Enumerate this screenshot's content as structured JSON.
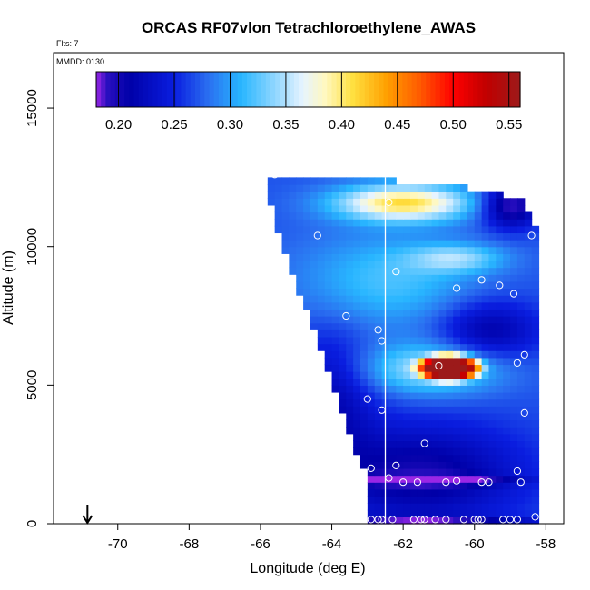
{
  "chart_data": {
    "type": "heatmap",
    "title": "ORCAS RF07vlon Tetrachloroethylene_AWAS",
    "flts_label": "Flts: 7",
    "mmdd_label": "MMDD: 0130",
    "xlabel": "Longitude (deg E)",
    "ylabel": "Altitude (m)",
    "xlim": [
      -71.8,
      -57.5
    ],
    "ylim": [
      0,
      17000
    ],
    "xticks": [
      -70,
      -68,
      -66,
      -64,
      -62,
      -60,
      -58
    ],
    "yticks": [
      0,
      5000,
      10000,
      15000
    ],
    "colorbar": {
      "range": [
        0.18,
        0.56
      ],
      "ticks": [
        0.2,
        0.25,
        0.3,
        0.35,
        0.4,
        0.45,
        0.5,
        0.55
      ],
      "tick_labels": [
        "0.20",
        "0.25",
        "0.30",
        "0.35",
        "0.40",
        "0.45",
        "0.50",
        "0.55"
      ],
      "stops": [
        {
          "v": 0.18,
          "c": "#9a26e6"
        },
        {
          "v": 0.19,
          "c": "#2a0fc0"
        },
        {
          "v": 0.21,
          "c": "#0000a8"
        },
        {
          "v": 0.25,
          "c": "#0a1ee0"
        },
        {
          "v": 0.28,
          "c": "#2a6ef0"
        },
        {
          "v": 0.31,
          "c": "#28b6ff"
        },
        {
          "v": 0.34,
          "c": "#8fd6ff"
        },
        {
          "v": 0.365,
          "c": "#e6f4ff"
        },
        {
          "v": 0.385,
          "c": "#fff8c0"
        },
        {
          "v": 0.41,
          "c": "#ffe040"
        },
        {
          "v": 0.44,
          "c": "#ffa000"
        },
        {
          "v": 0.47,
          "c": "#ff5a00"
        },
        {
          "v": 0.5,
          "c": "#ff0000"
        },
        {
          "v": 0.53,
          "c": "#c00000"
        },
        {
          "v": 0.56,
          "c": "#9c1a1a"
        }
      ]
    },
    "field": {
      "lon_step": 0.2,
      "alt_step": 250,
      "east_edge_lon": -58.2,
      "west_edge_profile": [
        [
          0,
          -62.9
        ],
        [
          1500,
          -62.9
        ],
        [
          2500,
          -63.3
        ],
        [
          4000,
          -63.7
        ],
        [
          6000,
          -64.2
        ],
        [
          8000,
          -64.8
        ],
        [
          10000,
          -65.4
        ],
        [
          11500,
          -65.7
        ],
        [
          12500,
          -65.7
        ]
      ],
      "top_profile": [
        [
          -65.7,
          12450
        ],
        [
          -62.5,
          12400
        ],
        [
          -59.5,
          12050
        ],
        [
          -58.7,
          11700
        ],
        [
          -58.2,
          10500
        ]
      ],
      "base_value": 0.27,
      "features": [
        {
          "lon": -60.7,
          "alt": 5650,
          "slon": 0.85,
          "salt": 450,
          "amp": 0.29,
          "shape": "plateau"
        },
        {
          "lon": -61.2,
          "alt": 5600,
          "slon": 1.9,
          "salt": 900,
          "amp": 0.08,
          "shape": "gauss"
        },
        {
          "lon": -62.0,
          "alt": 11600,
          "slon": 1.9,
          "salt": 650,
          "amp": 0.14,
          "shape": "gauss"
        },
        {
          "lon": -62.4,
          "alt": 8800,
          "slon": 2.5,
          "salt": 1700,
          "amp": 0.05,
          "shape": "gauss"
        },
        {
          "lon": -60.5,
          "alt": 9600,
          "slon": 1.3,
          "salt": 500,
          "amp": 0.06,
          "shape": "gauss"
        },
        {
          "lon": -59.0,
          "alt": 11500,
          "slon": 0.8,
          "salt": 800,
          "amp": -0.09,
          "shape": "gauss"
        },
        {
          "lon": -59.6,
          "alt": 7000,
          "slon": 1.4,
          "salt": 1100,
          "amp": -0.06,
          "shape": "gauss"
        },
        {
          "lon": -61.5,
          "alt": 1800,
          "slon": 2.8,
          "salt": 1800,
          "amp": -0.07,
          "shape": "gauss"
        },
        {
          "lon": -64.0,
          "alt": 4500,
          "slon": 1.2,
          "salt": 2500,
          "amp": -0.05,
          "shape": "gauss"
        },
        {
          "lon": -61.5,
          "alt": 1600,
          "slon": 2.4,
          "salt": 180,
          "amp": -0.07,
          "shape": "gauss"
        },
        {
          "lon": -61.5,
          "alt": 100,
          "slon": 3.5,
          "salt": 200,
          "amp": -0.06,
          "shape": "gauss"
        }
      ]
    },
    "flight_track_lon": -62.5,
    "arrow_lon": -70.85,
    "samples": [
      {
        "lon": -65.6,
        "alt": 12600
      },
      {
        "lon": -62.4,
        "alt": 11600
      },
      {
        "lon": -58.9,
        "alt": 11900
      },
      {
        "lon": -64.4,
        "alt": 10400
      },
      {
        "lon": -58.4,
        "alt": 10400
      },
      {
        "lon": -62.2,
        "alt": 9100
      },
      {
        "lon": -60.5,
        "alt": 8500
      },
      {
        "lon": -59.8,
        "alt": 8800
      },
      {
        "lon": -59.3,
        "alt": 8600
      },
      {
        "lon": -58.9,
        "alt": 8300
      },
      {
        "lon": -63.6,
        "alt": 7500
      },
      {
        "lon": -62.7,
        "alt": 7000
      },
      {
        "lon": -62.6,
        "alt": 6600
      },
      {
        "lon": -58.6,
        "alt": 6100
      },
      {
        "lon": -61.0,
        "alt": 5700
      },
      {
        "lon": -58.8,
        "alt": 5800
      },
      {
        "lon": -63.0,
        "alt": 4500
      },
      {
        "lon": -62.6,
        "alt": 4100
      },
      {
        "lon": -58.6,
        "alt": 4000
      },
      {
        "lon": -61.4,
        "alt": 2900
      },
      {
        "lon": -62.9,
        "alt": 2000
      },
      {
        "lon": -62.2,
        "alt": 2100
      },
      {
        "lon": -58.8,
        "alt": 1900
      },
      {
        "lon": -62.4,
        "alt": 1650
      },
      {
        "lon": -62.0,
        "alt": 1500
      },
      {
        "lon": -61.6,
        "alt": 1500
      },
      {
        "lon": -60.8,
        "alt": 1500
      },
      {
        "lon": -60.5,
        "alt": 1550
      },
      {
        "lon": -59.8,
        "alt": 1500
      },
      {
        "lon": -59.6,
        "alt": 1500
      },
      {
        "lon": -58.7,
        "alt": 1500
      },
      {
        "lon": -62.9,
        "alt": 150
      },
      {
        "lon": -62.7,
        "alt": 150
      },
      {
        "lon": -62.6,
        "alt": 150
      },
      {
        "lon": -62.3,
        "alt": 150
      },
      {
        "lon": -61.7,
        "alt": 150
      },
      {
        "lon": -61.5,
        "alt": 150
      },
      {
        "lon": -61.4,
        "alt": 150
      },
      {
        "lon": -61.1,
        "alt": 150
      },
      {
        "lon": -60.8,
        "alt": 150
      },
      {
        "lon": -60.3,
        "alt": 150
      },
      {
        "lon": -60.0,
        "alt": 150
      },
      {
        "lon": -59.9,
        "alt": 150
      },
      {
        "lon": -59.8,
        "alt": 150
      },
      {
        "lon": -59.2,
        "alt": 150
      },
      {
        "lon": -59.0,
        "alt": 150
      },
      {
        "lon": -58.8,
        "alt": 150
      },
      {
        "lon": -58.3,
        "alt": 250
      },
      {
        "lon": -58.0,
        "alt": 350
      }
    ]
  }
}
